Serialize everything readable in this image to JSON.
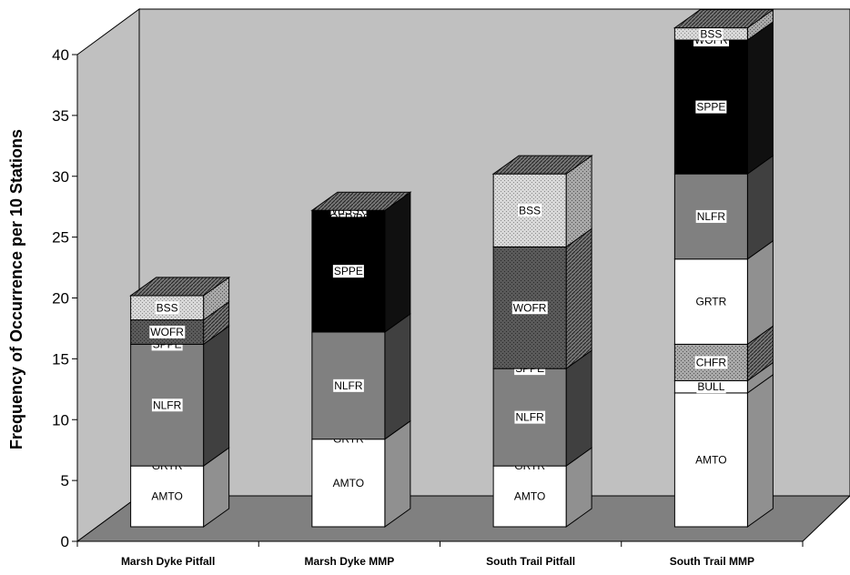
{
  "chart_data": {
    "type": "bar",
    "stacked": true,
    "three_d": true,
    "ylabel": "Frequency of Occurrence per 10 Stations",
    "xlabel": "",
    "ylim": [
      0,
      40
    ],
    "yticks": [
      "0",
      "5",
      "10",
      "15",
      "20",
      "25",
      "30",
      "35",
      "40"
    ],
    "grid": false,
    "legend": "none",
    "colors": {
      "wall": "#c0c0c0",
      "floor": "#808080",
      "AMTO": "#ffffff",
      "GRTR": "#ffffff",
      "BULL": "#ffffff",
      "CHFR": "#b5b5b5",
      "NLFR": "#808080",
      "SPPE": "#000000",
      "WOFR": "#5a5a5a",
      "BSS": "#c4c4c4"
    },
    "categories": [
      "Marsh Dyke Pitfall",
      "Marsh Dyke MMP",
      "South Trail Pitfall",
      "South Trail MMP"
    ],
    "stacks": [
      {
        "category": "Marsh Dyke Pitfall",
        "segments": [
          {
            "label": "AMTO",
            "value": 5
          },
          {
            "label": "GRTR",
            "value": 0
          },
          {
            "label": "NLFR",
            "value": 10
          },
          {
            "label": "SPPE",
            "value": 0
          },
          {
            "label": "WOFR",
            "value": 2
          },
          {
            "label": "BSS",
            "value": 2
          }
        ]
      },
      {
        "category": "Marsh Dyke MMP",
        "segments": [
          {
            "label": "AMTO",
            "value": 7.2
          },
          {
            "label": "GRTR",
            "value": 0
          },
          {
            "label": "NLFR",
            "value": 8.8
          },
          {
            "label": "SPPE",
            "value": 10
          },
          {
            "label": "WOFR",
            "value": 0
          },
          {
            "label": "BSS",
            "value": 0
          }
        ],
        "overlap_labels": [
          "WOFR",
          "BSS"
        ]
      },
      {
        "category": "South Trail Pitfall",
        "segments": [
          {
            "label": "AMTO",
            "value": 5
          },
          {
            "label": "GRTR",
            "value": 0
          },
          {
            "label": "NLFR",
            "value": 8
          },
          {
            "label": "SPPE",
            "value": 0
          },
          {
            "label": "WOFR",
            "value": 10
          },
          {
            "label": "BSS",
            "value": 6
          }
        ]
      },
      {
        "category": "South Trail MMP",
        "segments": [
          {
            "label": "AMTO",
            "value": 11
          },
          {
            "label": "BULL",
            "value": 1
          },
          {
            "label": "CHFR",
            "value": 3
          },
          {
            "label": "GRTR",
            "value": 7
          },
          {
            "label": "NLFR",
            "value": 7
          },
          {
            "label": "SPPE",
            "value": 11
          },
          {
            "label": "WOFR",
            "value": 0
          },
          {
            "label": "BSS",
            "value": 1
          }
        ]
      }
    ]
  }
}
